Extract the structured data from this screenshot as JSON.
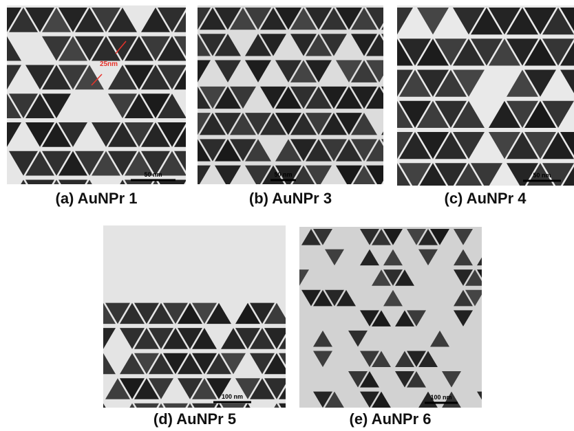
{
  "panels": [
    {
      "caption": "(a) AuNPr 1",
      "scale_bar": "50 nm",
      "annotation": "25nm"
    },
    {
      "caption": "(b) AuNPr 3",
      "scale_bar": "50 nm"
    },
    {
      "caption": "(c) AuNPr 4",
      "scale_bar": "50 nm"
    },
    {
      "caption": "(d) AuNPr 5",
      "scale_bar": "100 nm"
    },
    {
      "caption": "(e) AuNPr 6",
      "scale_bar": "100 nm"
    }
  ]
}
